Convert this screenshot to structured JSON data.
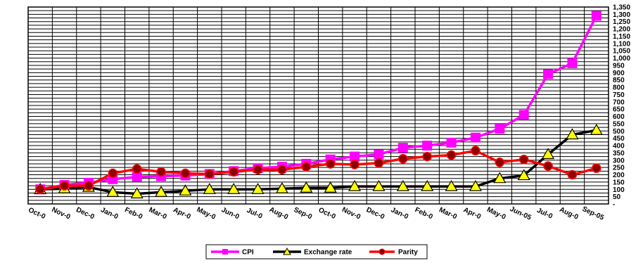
{
  "chart_data": {
    "type": "line",
    "title": "",
    "xlabel": "",
    "ylabel": "",
    "categories": [
      "Oct-0",
      "Nov-0",
      "Dec-0",
      "Jan-0",
      "Feb-0",
      "Mar-0",
      "Apr-0",
      "May-0",
      "Jun-0",
      "Jul-0",
      "Aug-0",
      "Sep-0",
      "Oct-0",
      "Nov-0",
      "Dec-0",
      "Jan-0",
      "Feb-0",
      "Mar-0",
      "Apr-0",
      "May-0",
      "Jun-05",
      "Jul-0",
      "Aug-0",
      "Sep-05"
    ],
    "y_ticks": [
      "1,350",
      "1,300",
      "1,250",
      "1,200",
      "1,150",
      "1,100",
      "1,050",
      "1,000",
      "950",
      "900",
      "850",
      "800",
      "750",
      "700",
      "650",
      "600",
      "550",
      "500",
      "450",
      "400",
      "350",
      "300",
      "250",
      "200",
      "150",
      "100",
      "50",
      "-"
    ],
    "ylim": [
      0,
      1350
    ],
    "grid": true,
    "legend_position": "bottom",
    "series": [
      {
        "name": "CPI",
        "color": "#ff00ff",
        "marker": "square",
        "values": [
          100,
          130,
          145,
          170,
          185,
          190,
          195,
          205,
          225,
          245,
          255,
          275,
          305,
          325,
          340,
          385,
          400,
          420,
          455,
          515,
          610,
          890,
          965,
          1290
        ]
      },
      {
        "name": "Exchange rate",
        "color": "#000000",
        "marker": "triangle",
        "values": [
          100,
          105,
          115,
          80,
          70,
          80,
          90,
          100,
          100,
          100,
          105,
          110,
          110,
          120,
          120,
          120,
          120,
          120,
          120,
          175,
          195,
          340,
          475,
          505
        ]
      },
      {
        "name": "Parity",
        "color": "#ff0000",
        "marker": "circle",
        "values": [
          100,
          125,
          125,
          210,
          240,
          220,
          210,
          205,
          220,
          235,
          235,
          255,
          275,
          270,
          280,
          310,
          325,
          335,
          365,
          285,
          305,
          260,
          200,
          245
        ]
      }
    ]
  }
}
